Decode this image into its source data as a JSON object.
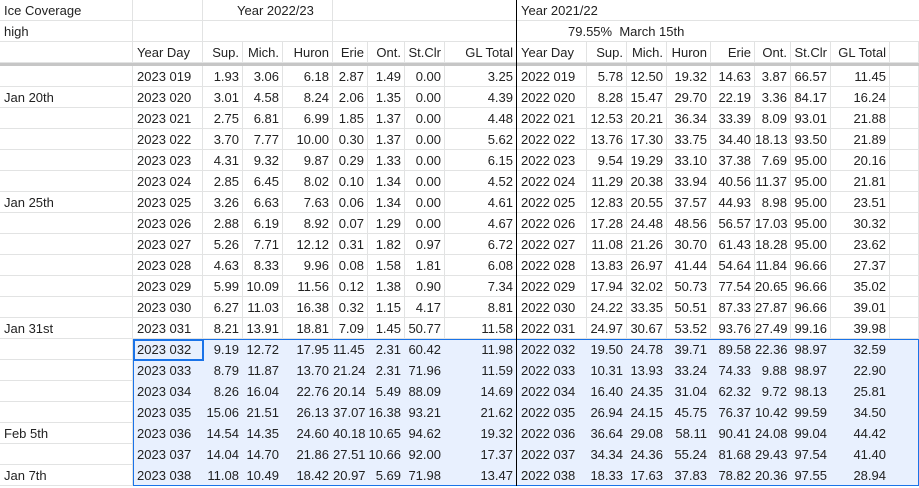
{
  "table": {
    "corner": "Ice Coverage",
    "subcorner": "high",
    "group_a": "Year 2022/23",
    "group_b": "Year 2021/22",
    "note": "79.55%  March 15th",
    "headers": [
      "Year Day",
      "Sup.",
      "Mich.",
      "Huron",
      "Erie",
      "Ont.",
      "St.Clr",
      "GL Total",
      "Year Day",
      "Sup.",
      "Mich.",
      "Huron",
      "Erie",
      "Ont.",
      "St.Clr",
      "GL Total"
    ],
    "rows": [
      {
        "cells": [
          "2023 019",
          "1.93",
          "3.06",
          "6.18",
          "2.87",
          "1.49",
          "0.00",
          "3.25",
          "2022 019",
          "5.78",
          "12.50",
          "19.32",
          "14.63",
          "3.87",
          "66.57",
          "11.45"
        ]
      },
      {
        "label": "Jan 20th",
        "cells": [
          "2023 020",
          "3.01",
          "4.58",
          "8.24",
          "2.06",
          "1.35",
          "0.00",
          "4.39",
          "2022 020",
          "8.28",
          "15.47",
          "29.70",
          "22.19",
          "3.36",
          "84.17",
          "16.24"
        ]
      },
      {
        "cells": [
          "2023 021",
          "2.75",
          "6.81",
          "6.99",
          "1.85",
          "1.37",
          "0.00",
          "4.48",
          "2022 021",
          "12.53",
          "20.21",
          "36.34",
          "33.39",
          "8.09",
          "93.01",
          "21.88"
        ]
      },
      {
        "cells": [
          "2023 022",
          "3.70",
          "7.77",
          "10.00",
          "0.30",
          "1.37",
          "0.00",
          "5.62",
          "2022 022",
          "13.76",
          "17.30",
          "33.75",
          "34.40",
          "18.13",
          "93.50",
          "21.89"
        ]
      },
      {
        "cells": [
          "2023 023",
          "4.31",
          "9.32",
          "9.87",
          "0.29",
          "1.33",
          "0.00",
          "6.15",
          "2022 023",
          "9.54",
          "19.29",
          "33.10",
          "37.38",
          "7.69",
          "95.00",
          "20.16"
        ]
      },
      {
        "cells": [
          "2023 024",
          "2.85",
          "6.45",
          "8.02",
          "0.10",
          "1.34",
          "0.00",
          "4.52",
          "2022 024",
          "11.29",
          "20.38",
          "33.94",
          "40.56",
          "11.37",
          "95.00",
          "21.81"
        ]
      },
      {
        "label": "Jan 25th",
        "cells": [
          "2023 025",
          "3.26",
          "6.63",
          "7.63",
          "0.06",
          "1.34",
          "0.00",
          "4.61",
          "2022 025",
          "12.83",
          "20.55",
          "37.57",
          "44.93",
          "8.98",
          "95.00",
          "23.51"
        ]
      },
      {
        "cells": [
          "2023 026",
          "2.88",
          "6.19",
          "8.92",
          "0.07",
          "1.29",
          "0.00",
          "4.67",
          "2022 026",
          "17.28",
          "24.48",
          "48.56",
          "56.57",
          "17.03",
          "95.00",
          "30.32"
        ]
      },
      {
        "cells": [
          "2023 027",
          "5.26",
          "7.71",
          "12.12",
          "0.31",
          "1.82",
          "0.97",
          "6.72",
          "2022 027",
          "11.08",
          "21.26",
          "30.70",
          "61.43",
          "18.28",
          "95.00",
          "23.62"
        ]
      },
      {
        "cells": [
          "2023 028",
          "4.63",
          "8.33",
          "9.96",
          "0.08",
          "1.58",
          "1.81",
          "6.08",
          "2022 028",
          "13.83",
          "26.97",
          "41.44",
          "54.64",
          "11.84",
          "96.66",
          "27.37"
        ]
      },
      {
        "cells": [
          "2023 029",
          "5.99",
          "10.09",
          "11.56",
          "0.12",
          "1.38",
          "0.90",
          "7.34",
          "2022 029",
          "17.94",
          "32.02",
          "50.73",
          "77.54",
          "20.65",
          "96.66",
          "35.02"
        ]
      },
      {
        "cells": [
          "2023 030",
          "6.27",
          "11.03",
          "16.38",
          "0.32",
          "1.15",
          "4.17",
          "8.81",
          "2022 030",
          "24.22",
          "33.35",
          "50.51",
          "87.33",
          "27.87",
          "96.66",
          "39.01"
        ]
      },
      {
        "label": "Jan 31st",
        "cells": [
          "2023 031",
          "8.21",
          "13.91",
          "18.81",
          "7.09",
          "1.45",
          "50.77",
          "11.58",
          "2022 031",
          "24.97",
          "30.67",
          "53.52",
          "93.76",
          "27.49",
          "99.16",
          "39.98"
        ]
      },
      {
        "cells": [
          "2023 032",
          "9.19",
          "12.72",
          "17.95",
          "11.45",
          "2.31",
          "60.42",
          "11.98",
          "2022 032",
          "19.50",
          "24.78",
          "39.71",
          "89.58",
          "22.36",
          "98.97",
          "32.59"
        ]
      },
      {
        "cells": [
          "2023 033",
          "8.79",
          "11.87",
          "13.70",
          "21.24",
          "2.31",
          "71.96",
          "11.59",
          "2022 033",
          "10.31",
          "13.93",
          "33.24",
          "74.33",
          "9.88",
          "98.97",
          "22.90"
        ]
      },
      {
        "cells": [
          "2023 034",
          "8.26",
          "16.04",
          "22.76",
          "20.14",
          "5.49",
          "88.09",
          "14.69",
          "2022 034",
          "16.40",
          "24.35",
          "31.04",
          "62.32",
          "9.72",
          "98.13",
          "25.81"
        ]
      },
      {
        "cells": [
          "2023 035",
          "15.06",
          "21.51",
          "26.13",
          "37.07",
          "16.38",
          "93.21",
          "21.62",
          "2022 035",
          "26.94",
          "24.15",
          "45.75",
          "76.37",
          "10.42",
          "99.59",
          "34.50"
        ]
      },
      {
        "label": "Feb 5th",
        "cells": [
          "2023 036",
          "14.54",
          "14.35",
          "24.60",
          "40.18",
          "10.65",
          "94.62",
          "19.32",
          "2022 036",
          "36.64",
          "29.08",
          "58.11",
          "90.41",
          "24.08",
          "99.04",
          "44.42"
        ]
      },
      {
        "cells": [
          "2023 037",
          "14.04",
          "14.70",
          "21.86",
          "27.51",
          "10.66",
          "92.00",
          "17.37",
          "2022 037",
          "34.34",
          "24.36",
          "55.24",
          "81.68",
          "29.43",
          "97.54",
          "41.40"
        ]
      },
      {
        "label": "Jan 7th",
        "cells": [
          "2023 038",
          "11.08",
          "10.49",
          "18.42",
          "20.97",
          "5.69",
          "71.98",
          "13.47",
          "2022 038",
          "18.33",
          "17.63",
          "37.83",
          "78.82",
          "20.36",
          "97.55",
          "28.94"
        ]
      }
    ]
  }
}
